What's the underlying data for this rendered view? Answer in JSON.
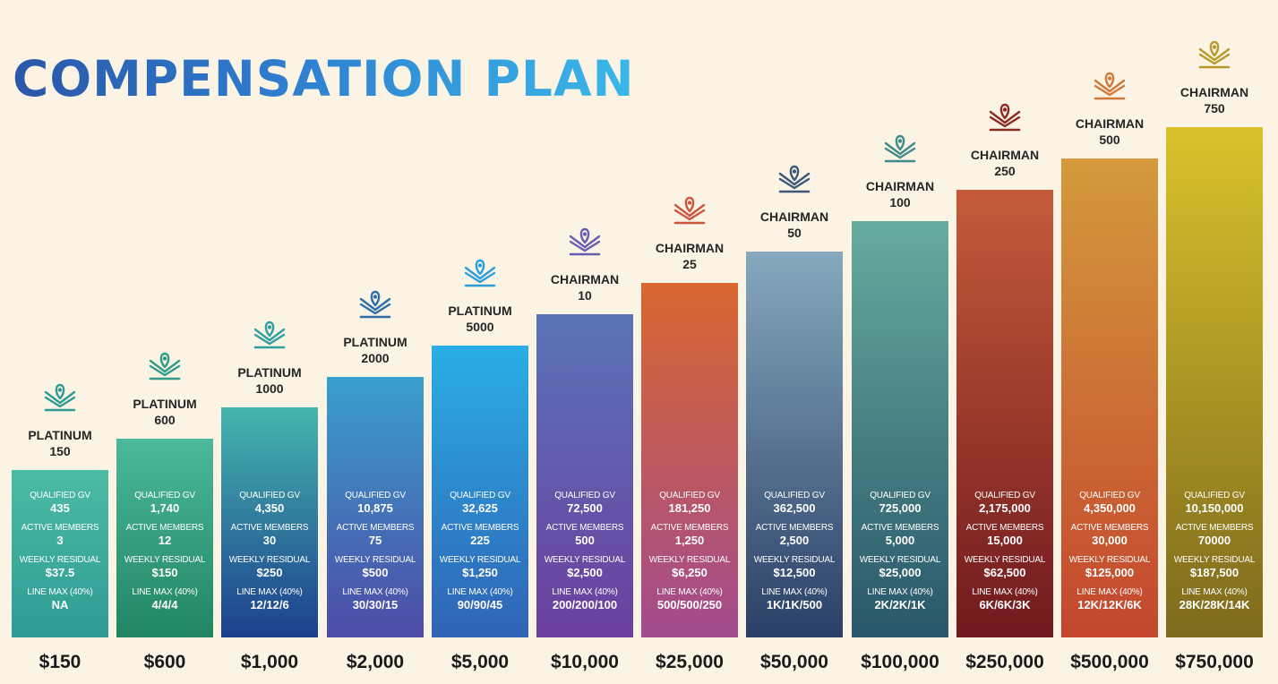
{
  "title": "COMPENSATION PLAN",
  "chart_data": {
    "type": "bar",
    "categories": [
      "$150",
      "$600",
      "$1,000",
      "$2,000",
      "$5,000",
      "$10,000",
      "$25,000",
      "$50,000",
      "$100,000",
      "$250,000",
      "$500,000",
      "$750,000"
    ],
    "labels": {
      "qualified_gv": "QUALIFIED GV",
      "active_members": "ACTIVE MEMBERS",
      "weekly_residual": "WEEKLY RESIDUAL",
      "line_max": "LINE MAX (40%)"
    },
    "tiers": [
      {
        "rank": "PLATINUM",
        "level": "150",
        "qualified_gv": "435",
        "active_members": "3",
        "weekly_residual": "$37.5",
        "line_max": "NA",
        "price": "$150",
        "colors": [
          "#4bbba4",
          "#2f9b95"
        ],
        "icon_color": "#2f9b95"
      },
      {
        "rank": "PLATINUM",
        "level": "600",
        "qualified_gv": "1,740",
        "active_members": "12",
        "weekly_residual": "$150",
        "line_max": "4/4/4",
        "price": "$600",
        "colors": [
          "#4cb89c",
          "#218563"
        ],
        "icon_color": "#2f9b8a"
      },
      {
        "rank": "PLATINUM",
        "level": "1000",
        "qualified_gv": "4,350",
        "active_members": "30",
        "weekly_residual": "$250",
        "line_max": "12/12/6",
        "price": "$1,000",
        "colors": [
          "#45b6ad",
          "#1c3f8e"
        ],
        "icon_color": "#2f9fa0"
      },
      {
        "rank": "PLATINUM",
        "level": "2000",
        "qualified_gv": "10,875",
        "active_members": "75",
        "weekly_residual": "$500",
        "line_max": "30/30/15",
        "price": "$2,000",
        "colors": [
          "#3a9fcd",
          "#4d4ba6"
        ],
        "icon_color": "#2f6fa8"
      },
      {
        "rank": "PLATINUM",
        "level": "5000",
        "qualified_gv": "32,625",
        "active_members": "225",
        "weekly_residual": "$1,250",
        "line_max": "90/90/45",
        "price": "$5,000",
        "colors": [
          "#2aaee6",
          "#3063b5"
        ],
        "icon_color": "#2a9fdb"
      },
      {
        "rank": "CHAIRMAN",
        "level": "10",
        "qualified_gv": "72,500",
        "active_members": "500",
        "weekly_residual": "$2,500",
        "line_max": "200/200/100",
        "price": "$10,000",
        "colors": [
          "#5a74b8",
          "#6b3f9e"
        ],
        "icon_color": "#6a5cb0"
      },
      {
        "rank": "CHAIRMAN",
        "level": "25",
        "qualified_gv": "181,250",
        "active_members": "1,250",
        "weekly_residual": "$6,250",
        "line_max": "500/500/250",
        "price": "$25,000",
        "colors": [
          "#d96730",
          "#a24b8f"
        ],
        "icon_color": "#cc5540"
      },
      {
        "rank": "CHAIRMAN",
        "level": "50",
        "qualified_gv": "362,500",
        "active_members": "2,500",
        "weekly_residual": "$12,500",
        "line_max": "1K/1K/500",
        "price": "$50,000",
        "colors": [
          "#86a9be",
          "#2a3f66"
        ],
        "icon_color": "#3d5878"
      },
      {
        "rank": "CHAIRMAN",
        "level": "100",
        "qualified_gv": "725,000",
        "active_members": "5,000",
        "weekly_residual": "$25,000",
        "line_max": "2K/2K/1K",
        "price": "$100,000",
        "colors": [
          "#67ab9e",
          "#29576a"
        ],
        "icon_color": "#3f8a8a"
      },
      {
        "rank": "CHAIRMAN",
        "level": "250",
        "qualified_gv": "2,175,000",
        "active_members": "15,000",
        "weekly_residual": "$62,500",
        "line_max": "6K/6K/3K",
        "price": "$250,000",
        "colors": [
          "#c45b3b",
          "#70191e"
        ],
        "icon_color": "#8a2a22"
      },
      {
        "rank": "CHAIRMAN",
        "level": "500",
        "qualified_gv": "4,350,000",
        "active_members": "30,000",
        "weekly_residual": "$125,000",
        "line_max": "12K/12K/6K",
        "price": "$500,000",
        "colors": [
          "#d49a3d",
          "#c4462e"
        ],
        "icon_color": "#d07a3a"
      },
      {
        "rank": "CHAIRMAN",
        "level": "750",
        "qualified_gv": "10,150,000",
        "active_members": "70000",
        "weekly_residual": "$187,500",
        "line_max": "28K/28K/14K",
        "price": "$750,000",
        "colors": [
          "#d9c22c",
          "#7e6a1d"
        ],
        "icon_color": "#b89a2a"
      }
    ]
  }
}
